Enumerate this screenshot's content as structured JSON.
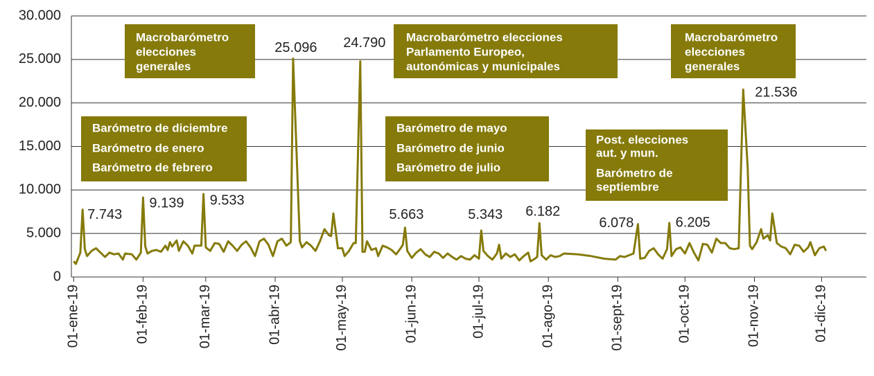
{
  "chart_data": {
    "type": "line",
    "color": "#857a0a",
    "xlim": [
      "2018-12-31",
      "2019-12-21"
    ],
    "xticks": [
      {
        "value": "2019-01-01",
        "label": "01-ene-19"
      },
      {
        "value": "2019-02-01",
        "label": "01-feb-19"
      },
      {
        "value": "2019-03-01",
        "label": "01-mar-19"
      },
      {
        "value": "2019-04-01",
        "label": "01-abr-19"
      },
      {
        "value": "2019-05-01",
        "label": "01-may-19"
      },
      {
        "value": "2019-06-01",
        "label": "01-jun-19"
      },
      {
        "value": "2019-07-01",
        "label": "01-jul-19"
      },
      {
        "value": "2019-08-01",
        "label": "01-ago-19"
      },
      {
        "value": "2019-09-01",
        "label": "01-sept-19"
      },
      {
        "value": "2019-10-01",
        "label": "01-oct-19"
      },
      {
        "value": "2019-11-01",
        "label": "01-nov-19"
      },
      {
        "value": "2019-12-01",
        "label": "01-dic-19"
      }
    ],
    "ylim": [
      0,
      30000
    ],
    "yticks": [
      0,
      {
        "value": 5000,
        "label": "5.000"
      },
      {
        "value": 10000,
        "label": "10.000"
      },
      {
        "value": 15000,
        "label": "15.000"
      },
      {
        "value": 20000,
        "label": "20.000"
      },
      {
        "value": 25000,
        "label": "25.000"
      },
      {
        "value": 30000,
        "label": "30.000"
      }
    ],
    "grid": true,
    "x": [
      "2019-01-01",
      "2019-01-02",
      "2019-01-04",
      "2019-01-05",
      "2019-01-06",
      "2019-01-07",
      "2019-01-09",
      "2019-01-11",
      "2019-01-13",
      "2019-01-15",
      "2019-01-17",
      "2019-01-19",
      "2019-01-21",
      "2019-01-23",
      "2019-01-24",
      "2019-01-27",
      "2019-01-29",
      "2019-01-31",
      "2019-02-01",
      "2019-02-02",
      "2019-02-03",
      "2019-02-05",
      "2019-02-07",
      "2019-02-09",
      "2019-02-11",
      "2019-02-12",
      "2019-02-13",
      "2019-02-14",
      "2019-02-16",
      "2019-02-17",
      "2019-02-19",
      "2019-02-21",
      "2019-02-23",
      "2019-02-24",
      "2019-02-26",
      "2019-02-27",
      "2019-02-28",
      "2019-03-01",
      "2019-03-03",
      "2019-03-05",
      "2019-03-07",
      "2019-03-09",
      "2019-03-11",
      "2019-03-13",
      "2019-03-15",
      "2019-03-17",
      "2019-03-19",
      "2019-03-21",
      "2019-03-23",
      "2019-03-25",
      "2019-03-27",
      "2019-03-29",
      "2019-03-31",
      "2019-04-02",
      "2019-04-04",
      "2019-04-06",
      "2019-04-08",
      "2019-04-09",
      "2019-04-12",
      "2019-04-13",
      "2019-04-15",
      "2019-04-17",
      "2019-04-19",
      "2019-04-21",
      "2019-04-23",
      "2019-04-25",
      "2019-04-26",
      "2019-04-27",
      "2019-04-29",
      "2019-05-01",
      "2019-05-02",
      "2019-05-04",
      "2019-05-06",
      "2019-05-07",
      "2019-05-09",
      "2019-05-10",
      "2019-05-11",
      "2019-05-12",
      "2019-05-14",
      "2019-05-16",
      "2019-05-17",
      "2019-05-19",
      "2019-05-21",
      "2019-05-23",
      "2019-05-25",
      "2019-05-27",
      "2019-05-28",
      "2019-05-29",
      "2019-05-30",
      "2019-06-01",
      "2019-06-03",
      "2019-06-05",
      "2019-06-07",
      "2019-06-09",
      "2019-06-11",
      "2019-06-13",
      "2019-06-15",
      "2019-06-17",
      "2019-06-19",
      "2019-06-21",
      "2019-06-23",
      "2019-06-25",
      "2019-06-27",
      "2019-06-29",
      "2019-07-01",
      "2019-07-02",
      "2019-07-03",
      "2019-07-05",
      "2019-07-07",
      "2019-07-09",
      "2019-07-10",
      "2019-07-11",
      "2019-07-13",
      "2019-07-15",
      "2019-07-17",
      "2019-07-19",
      "2019-07-21",
      "2019-07-23",
      "2019-07-24",
      "2019-07-26",
      "2019-07-27",
      "2019-07-28",
      "2019-07-29",
      "2019-07-31",
      "2019-08-02",
      "2019-08-04",
      "2019-08-06",
      "2019-08-08",
      "2019-08-14",
      "2019-08-20",
      "2019-08-26",
      "2019-08-31",
      "2019-09-02",
      "2019-09-04",
      "2019-09-06",
      "2019-09-08",
      "2019-09-10",
      "2019-09-11",
      "2019-09-13",
      "2019-09-15",
      "2019-09-17",
      "2019-09-19",
      "2019-09-21",
      "2019-09-23",
      "2019-09-24",
      "2019-09-25",
      "2019-09-27",
      "2019-09-29",
      "2019-10-01",
      "2019-10-03",
      "2019-10-05",
      "2019-10-07",
      "2019-10-09",
      "2019-10-11",
      "2019-10-13",
      "2019-10-15",
      "2019-10-17",
      "2019-10-19",
      "2019-10-21",
      "2019-10-23",
      "2019-10-25",
      "2019-10-27",
      "2019-10-29",
      "2019-10-30",
      "2019-10-31",
      "2019-11-02",
      "2019-11-04",
      "2019-11-05",
      "2019-11-07",
      "2019-11-08",
      "2019-11-09",
      "2019-11-11",
      "2019-11-13",
      "2019-11-15",
      "2019-11-17",
      "2019-11-19",
      "2019-11-21",
      "2019-11-23",
      "2019-11-25",
      "2019-11-26",
      "2019-11-28",
      "2019-11-30",
      "2019-12-02",
      "2019-12-03"
    ],
    "values": [
      1800,
      1500,
      2800,
      7743,
      3200,
      2400,
      3000,
      3300,
      2800,
      2300,
      2800,
      2600,
      2700,
      2000,
      2700,
      2600,
      2000,
      2800,
      9139,
      3500,
      2700,
      3000,
      3100,
      2900,
      3600,
      3100,
      4000,
      3500,
      4200,
      3000,
      4100,
      3600,
      2700,
      3600,
      3600,
      3600,
      9533,
      3400,
      3000,
      3900,
      3800,
      2900,
      4100,
      3600,
      3000,
      3700,
      4100,
      3400,
      2400,
      4100,
      4400,
      3700,
      2400,
      4100,
      4400,
      3600,
      4000,
      25096,
      4100,
      3400,
      4000,
      3600,
      3000,
      4100,
      5500,
      4800,
      4700,
      7300,
      3300,
      3300,
      2400,
      3000,
      3900,
      3900,
      24790,
      2900,
      2900,
      4100,
      3100,
      3300,
      2400,
      3600,
      3400,
      3100,
      2600,
      3300,
      3700,
      5663,
      3000,
      2200,
      2800,
      3200,
      2600,
      2300,
      2900,
      2700,
      2200,
      2700,
      2300,
      2000,
      2400,
      2100,
      2000,
      2500,
      2100,
      5343,
      3000,
      2400,
      2000,
      2700,
      3700,
      2100,
      2700,
      2300,
      2600,
      1900,
      2400,
      2800,
      1800,
      2100,
      2300,
      6182,
      2500,
      2000,
      2500,
      2300,
      2400,
      2700,
      2600,
      2400,
      2100,
      2000,
      2400,
      2300,
      2500,
      2700,
      6078,
      2100,
      2200,
      3000,
      3300,
      2600,
      2100,
      3200,
      6205,
      2400,
      3200,
      3400,
      2700,
      3900,
      2800,
      1900,
      3800,
      3700,
      2800,
      4400,
      3900,
      3900,
      3300,
      3200,
      3300,
      21536,
      12500,
      3600,
      3200,
      4000,
      5500,
      4400,
      4800,
      4200,
      7300,
      3900,
      3500,
      3300,
      2600,
      3700,
      3600,
      2900,
      3400,
      4000,
      2500,
      3300,
      3500,
      3000
    ],
    "value_labels": [
      null,
      null,
      null,
      "7.743",
      null,
      null,
      null,
      null,
      null,
      null,
      null,
      null,
      null,
      null,
      null,
      null,
      null,
      null,
      "9.139",
      null,
      null,
      null,
      null,
      null,
      null,
      null,
      null,
      null,
      null,
      null,
      null,
      null,
      null,
      null,
      null,
      null,
      "9.533",
      null,
      null,
      null,
      null,
      null,
      null,
      null,
      null,
      null,
      null,
      null,
      null,
      null,
      null,
      null,
      null,
      null,
      null,
      null,
      null,
      "25.096",
      null,
      null,
      null,
      null,
      null,
      null,
      null,
      null,
      null,
      null,
      null,
      null,
      null,
      null,
      null,
      null,
      "24.790",
      null,
      null,
      null,
      null,
      null,
      null,
      null,
      null,
      null,
      null,
      null,
      null,
      "5.663",
      null,
      null,
      null,
      null,
      null,
      null,
      null,
      null,
      null,
      null,
      null,
      null,
      null,
      null,
      null,
      null,
      null,
      "5.343",
      null,
      null,
      null,
      null,
      null,
      null,
      null,
      null,
      null,
      null,
      null,
      null,
      null,
      null,
      null,
      "6.182",
      null,
      null,
      null,
      null,
      null,
      null,
      null,
      null,
      null,
      null,
      null,
      null,
      null,
      null,
      "6.078",
      null,
      null,
      null,
      null,
      null,
      null,
      null,
      "6.205",
      null,
      null,
      null,
      null,
      null,
      null,
      null,
      null,
      null,
      null,
      null,
      null,
      null,
      null,
      null,
      null,
      "21.536",
      null,
      null,
      null,
      null,
      null,
      null,
      null,
      null,
      null,
      null,
      null,
      null,
      null,
      null,
      null,
      null,
      null,
      null,
      null,
      null,
      null,
      null
    ],
    "annotations": [
      [
        "Macrobarómetro",
        "elecciones",
        "generales"
      ],
      [
        "Macrobarómetro elecciones",
        "Parlamento Europeo,",
        "autonómicas y municipales"
      ],
      [
        "Macrobarómetro",
        "elecciones",
        "generales"
      ],
      [
        "Barómetro de diciembre",
        "Barómetro de enero",
        "Barómetro de febrero"
      ],
      [
        "Barómetro de mayo",
        "Barómetro de junio",
        "Barómetro de julio"
      ],
      [
        "Post. elecciones",
        "aut. y mun.",
        "Barómetro de",
        "septiembre"
      ]
    ]
  }
}
